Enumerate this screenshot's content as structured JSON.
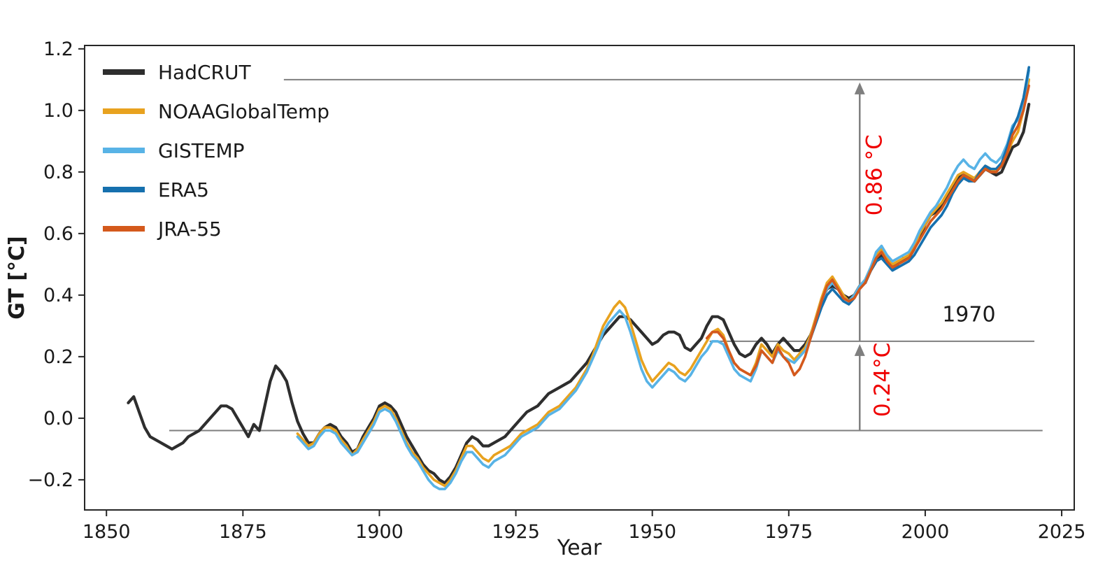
{
  "chart_data": {
    "type": "line",
    "title": "",
    "xlabel": "Year",
    "ylabel": "GT [°C]",
    "xlim": [
      1846,
      2027.3
    ],
    "ylim": [
      -0.298,
      1.211
    ],
    "grid": false,
    "legend_position": "upper left",
    "xtick_values": [
      1850,
      1875,
      1900,
      1925,
      1950,
      1975,
      2000,
      2025
    ],
    "xtick_labels": [
      "1850",
      "1875",
      "1900",
      "1925",
      "1950",
      "1975",
      "2000",
      "2025"
    ],
    "ytick_values": [
      1.2,
      1.0,
      0.8,
      0.6,
      0.4,
      0.2,
      0.0,
      -0.2
    ],
    "ytick_labels": [
      "1.2",
      "1.0",
      "0.8",
      "0.6",
      "0.4",
      "0.2",
      "0.0",
      "−0.2"
    ],
    "axis_color": "#262626",
    "series": [
      {
        "name": "HadCRUT",
        "color": "#2e2e2e",
        "width": 4.2,
        "start_year": 1854,
        "values": [
          0.05,
          0.07,
          0.02,
          -0.03,
          -0.06,
          -0.07,
          -0.08,
          -0.09,
          -0.1,
          -0.09,
          -0.08,
          -0.06,
          -0.05,
          -0.04,
          -0.02,
          0.0,
          0.02,
          0.04,
          0.04,
          0.03,
          0.0,
          -0.03,
          -0.06,
          -0.02,
          -0.04,
          0.04,
          0.12,
          0.17,
          0.15,
          0.12,
          0.05,
          -0.01,
          -0.05,
          -0.08,
          -0.08,
          -0.05,
          -0.03,
          -0.02,
          -0.03,
          -0.06,
          -0.08,
          -0.11,
          -0.1,
          -0.06,
          -0.03,
          0.0,
          0.04,
          0.05,
          0.04,
          0.02,
          -0.02,
          -0.06,
          -0.09,
          -0.12,
          -0.15,
          -0.17,
          -0.18,
          -0.2,
          -0.21,
          -0.19,
          -0.16,
          -0.12,
          -0.08,
          -0.06,
          -0.07,
          -0.09,
          -0.09,
          -0.08,
          -0.07,
          -0.06,
          -0.04,
          -0.02,
          0.0,
          0.02,
          0.03,
          0.04,
          0.06,
          0.08,
          0.09,
          0.1,
          0.11,
          0.12,
          0.14,
          0.16,
          0.18,
          0.21,
          0.24,
          0.27,
          0.29,
          0.31,
          0.33,
          0.33,
          0.32,
          0.3,
          0.28,
          0.26,
          0.24,
          0.25,
          0.27,
          0.28,
          0.28,
          0.27,
          0.23,
          0.22,
          0.24,
          0.26,
          0.3,
          0.33,
          0.33,
          0.32,
          0.28,
          0.24,
          0.21,
          0.2,
          0.21,
          0.24,
          0.26,
          0.24,
          0.21,
          0.24,
          0.26,
          0.24,
          0.22,
          0.22,
          0.24,
          0.27,
          0.32,
          0.38,
          0.42,
          0.43,
          0.42,
          0.4,
          0.39,
          0.4,
          0.43,
          0.44,
          0.48,
          0.51,
          0.53,
          0.51,
          0.49,
          0.5,
          0.52,
          0.52,
          0.55,
          0.59,
          0.63,
          0.66,
          0.67,
          0.69,
          0.72,
          0.75,
          0.78,
          0.79,
          0.78,
          0.77,
          0.79,
          0.81,
          0.8,
          0.79,
          0.8,
          0.84,
          0.88,
          0.89,
          0.93,
          1.02
        ]
      },
      {
        "name": "NOAAGlobalTemp",
        "color": "#e8a21f",
        "width": 3.6,
        "start_year": 1885,
        "values": [
          -0.05,
          -0.07,
          -0.09,
          -0.08,
          -0.05,
          -0.03,
          -0.03,
          -0.04,
          -0.07,
          -0.09,
          -0.12,
          -0.1,
          -0.07,
          -0.04,
          -0.01,
          0.03,
          0.04,
          0.03,
          0.0,
          -0.04,
          -0.08,
          -0.11,
          -0.13,
          -0.16,
          -0.18,
          -0.2,
          -0.21,
          -0.22,
          -0.2,
          -0.17,
          -0.13,
          -0.09,
          -0.09,
          -0.11,
          -0.13,
          -0.14,
          -0.12,
          -0.11,
          -0.1,
          -0.09,
          -0.07,
          -0.05,
          -0.04,
          -0.03,
          -0.02,
          0.0,
          0.02,
          0.03,
          0.04,
          0.06,
          0.08,
          0.1,
          0.13,
          0.16,
          0.2,
          0.25,
          0.3,
          0.33,
          0.36,
          0.38,
          0.36,
          0.31,
          0.25,
          0.19,
          0.15,
          0.12,
          0.14,
          0.16,
          0.18,
          0.17,
          0.15,
          0.14,
          0.16,
          0.19,
          0.22,
          0.25,
          0.28,
          0.29,
          0.27,
          0.22,
          0.18,
          0.16,
          0.15,
          0.14,
          0.18,
          0.24,
          0.22,
          0.2,
          0.24,
          0.22,
          0.21,
          0.19,
          0.21,
          0.23,
          0.27,
          0.33,
          0.39,
          0.44,
          0.46,
          0.43,
          0.4,
          0.38,
          0.4,
          0.43,
          0.45,
          0.49,
          0.53,
          0.55,
          0.52,
          0.5,
          0.51,
          0.52,
          0.53,
          0.56,
          0.6,
          0.63,
          0.66,
          0.68,
          0.7,
          0.73,
          0.76,
          0.79,
          0.8,
          0.79,
          0.78,
          0.8,
          0.82,
          0.81,
          0.8,
          0.82,
          0.86,
          0.9,
          0.93,
          1.0,
          1.1
        ]
      },
      {
        "name": "GISTEMP",
        "color": "#58b3e6",
        "width": 3.6,
        "start_year": 1885,
        "values": [
          -0.06,
          -0.08,
          -0.1,
          -0.09,
          -0.06,
          -0.04,
          -0.04,
          -0.05,
          -0.08,
          -0.1,
          -0.12,
          -0.11,
          -0.08,
          -0.05,
          -0.02,
          0.02,
          0.03,
          0.02,
          -0.01,
          -0.05,
          -0.09,
          -0.12,
          -0.14,
          -0.17,
          -0.2,
          -0.22,
          -0.23,
          -0.23,
          -0.21,
          -0.18,
          -0.14,
          -0.11,
          -0.11,
          -0.13,
          -0.15,
          -0.16,
          -0.14,
          -0.13,
          -0.12,
          -0.1,
          -0.08,
          -0.06,
          -0.05,
          -0.04,
          -0.03,
          -0.01,
          0.01,
          0.02,
          0.03,
          0.05,
          0.07,
          0.09,
          0.12,
          0.15,
          0.19,
          0.23,
          0.28,
          0.31,
          0.33,
          0.35,
          0.33,
          0.28,
          0.22,
          0.16,
          0.12,
          0.1,
          0.12,
          0.14,
          0.16,
          0.15,
          0.13,
          0.12,
          0.14,
          0.17,
          0.2,
          0.22,
          0.25,
          0.25,
          0.24,
          0.2,
          0.16,
          0.14,
          0.13,
          0.12,
          0.16,
          0.22,
          0.2,
          0.18,
          0.22,
          0.2,
          0.19,
          0.18,
          0.2,
          0.22,
          0.26,
          0.32,
          0.38,
          0.42,
          0.44,
          0.42,
          0.39,
          0.38,
          0.4,
          0.43,
          0.45,
          0.49,
          0.54,
          0.56,
          0.53,
          0.51,
          0.52,
          0.53,
          0.54,
          0.57,
          0.61,
          0.64,
          0.67,
          0.69,
          0.72,
          0.75,
          0.79,
          0.82,
          0.84,
          0.82,
          0.81,
          0.84,
          0.86,
          0.84,
          0.83,
          0.85,
          0.89,
          0.95,
          0.97,
          1.02,
          1.13
        ]
      },
      {
        "name": "ERA5",
        "color": "#1670ae",
        "width": 3.6,
        "start_year": 1979,
        "values": [
          0.26,
          0.31,
          0.36,
          0.4,
          0.42,
          0.4,
          0.38,
          0.37,
          0.39,
          0.42,
          0.44,
          0.48,
          0.51,
          0.52,
          0.5,
          0.48,
          0.49,
          0.5,
          0.51,
          0.53,
          0.56,
          0.59,
          0.62,
          0.64,
          0.66,
          0.69,
          0.73,
          0.76,
          0.78,
          0.77,
          0.77,
          0.8,
          0.82,
          0.81,
          0.81,
          0.83,
          0.88,
          0.94,
          0.98,
          1.04,
          1.14
        ]
      },
      {
        "name": "JRA-55",
        "color": "#d4591c",
        "width": 3.6,
        "start_year": 1960,
        "values": [
          0.26,
          0.28,
          0.28,
          0.26,
          0.22,
          0.18,
          0.16,
          0.15,
          0.14,
          0.17,
          0.22,
          0.2,
          0.18,
          0.23,
          0.2,
          0.18,
          0.14,
          0.16,
          0.2,
          0.26,
          0.32,
          0.38,
          0.43,
          0.45,
          0.42,
          0.39,
          0.38,
          0.39,
          0.42,
          0.44,
          0.48,
          0.52,
          0.54,
          0.51,
          0.49,
          0.5,
          0.51,
          0.52,
          0.55,
          0.58,
          0.61,
          0.64,
          0.66,
          0.68,
          0.71,
          0.74,
          0.77,
          0.79,
          0.78,
          0.77,
          0.79,
          0.81,
          0.8,
          0.8,
          0.82,
          0.86,
          0.92,
          0.95,
          1.0,
          1.08
        ]
      }
    ],
    "annotations": {
      "line_color": "#7f7f7f",
      "hlines": [
        {
          "y": 1.1,
          "x0": 1882.5,
          "x1": 2018.0
        },
        {
          "y": 0.25,
          "x0": 1960.5,
          "x1": 2020.0
        },
        {
          "y": -0.04,
          "x0": 1861.5,
          "x1": 2021.5
        }
      ],
      "arrows": [
        {
          "x": 1988,
          "y_from": 0.25,
          "y_to": 1.1
        },
        {
          "x": 1988,
          "y_from": -0.04,
          "y_to": 0.25
        }
      ],
      "labels": [
        {
          "text": "0.86 °C",
          "x": 1992.0,
          "y": 0.79,
          "color": "#ef0000",
          "rotation": -90,
          "size": 31,
          "bold": false
        },
        {
          "text": "0.24°C",
          "x": 1993.5,
          "y": 0.125,
          "color": "#ef0000",
          "rotation": -90,
          "size": 31,
          "bold": false
        },
        {
          "text": "1970",
          "x": 2008.0,
          "y": 0.315,
          "color": "#1a1a1a",
          "rotation": 0,
          "size": 30,
          "bold": false
        }
      ]
    }
  }
}
